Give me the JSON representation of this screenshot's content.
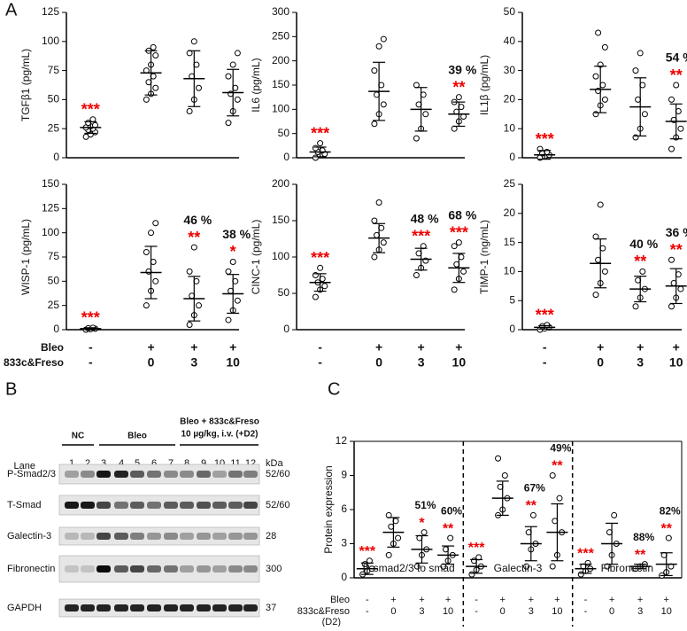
{
  "panel_a": {
    "label": "A",
    "row_labels": [
      "Bleo",
      "833c&Freso"
    ],
    "bleo": [
      "-",
      "+",
      "+",
      "+"
    ],
    "dose": [
      "-",
      "0",
      "3",
      "10"
    ]
  },
  "panel_b": {
    "label": "B",
    "groups": [
      "NC",
      "Bleo",
      "Bleo + 833c&Freso",
      "10 µg/kg, i.v. (+D2)"
    ],
    "lane_label": "Lane",
    "lanes": [
      "1",
      "2",
      "3",
      "4",
      "5",
      "6",
      "7",
      "8",
      "9",
      "10",
      "11",
      "12"
    ],
    "kda_label": "kDa",
    "rows": [
      {
        "name": "P-Smad2/3",
        "kda": "52/60"
      },
      {
        "name": "T-Smad",
        "kda": "52/60"
      },
      {
        "name": "Galectin-3",
        "kda": "28"
      },
      {
        "name": "Fibronectin",
        "kda": "300"
      },
      {
        "name": "GAPDH",
        "kda": "37"
      }
    ]
  },
  "panel_c": {
    "label": "C",
    "row_labels": [
      "Bleo",
      "833c&Freso",
      "(D2)"
    ],
    "bleo": [
      "-",
      "+",
      "+",
      "+"
    ],
    "dose": [
      "-",
      "0",
      "3",
      "10"
    ]
  },
  "chart_data": [
    {
      "type": "dot_plot",
      "ylabel": "TGFβ1  (pg/mL)",
      "ylim": [
        0,
        125
      ],
      "yticks": [
        0,
        25,
        50,
        75,
        100,
        125
      ],
      "groups": [
        {
          "mean": 26,
          "sd": 5,
          "stars": "***",
          "points": [
            18,
            20,
            22,
            24,
            25,
            26,
            27,
            28,
            30,
            33
          ]
        },
        {
          "mean": 73,
          "sd": 19,
          "points": [
            50,
            55,
            60,
            65,
            70,
            75,
            80,
            88,
            92,
            95
          ]
        },
        {
          "mean": 68,
          "sd": 24,
          "points": [
            40,
            50,
            60,
            70,
            80,
            90,
            100
          ]
        },
        {
          "mean": 56,
          "sd": 20,
          "points": [
            30,
            40,
            50,
            55,
            60,
            70,
            80,
            90
          ]
        }
      ]
    },
    {
      "type": "dot_plot",
      "ylabel": "IL6  (pg/mL)",
      "ylim": [
        0,
        300
      ],
      "yticks": [
        0,
        50,
        100,
        150,
        200,
        250,
        300
      ],
      "groups": [
        {
          "mean": 12,
          "sd": 10,
          "stars": "***",
          "points": [
            0,
            5,
            8,
            12,
            15,
            20,
            30
          ]
        },
        {
          "mean": 137,
          "sd": 60,
          "points": [
            70,
            90,
            110,
            130,
            150,
            180,
            230,
            245
          ]
        },
        {
          "mean": 100,
          "sd": 45,
          "points": [
            40,
            60,
            90,
            110,
            130,
            150
          ]
        },
        {
          "mean": 90,
          "sd": 25,
          "stars": "**",
          "pct": "39 %",
          "points": [
            60,
            75,
            85,
            95,
            105,
            115,
            125
          ]
        }
      ]
    },
    {
      "type": "dot_plot",
      "ylabel": "IL1β  (pg/mL)",
      "ylim": [
        0,
        50
      ],
      "yticks": [
        0,
        10,
        20,
        30,
        40,
        50
      ],
      "groups": [
        {
          "mean": 1,
          "sd": 1.5,
          "stars": "***",
          "points": [
            0,
            0.5,
            1,
            1.5,
            2,
            3
          ]
        },
        {
          "mean": 23.5,
          "sd": 8,
          "points": [
            15,
            18,
            20,
            23,
            25,
            28,
            32,
            38,
            43
          ]
        },
        {
          "mean": 17.5,
          "sd": 10,
          "points": [
            7,
            10,
            15,
            20,
            25,
            30,
            36
          ]
        },
        {
          "mean": 12.5,
          "sd": 6,
          "stars": "**",
          "pct": "54 %",
          "points": [
            3,
            7,
            10,
            13,
            16,
            20,
            25
          ]
        }
      ]
    },
    {
      "type": "dot_plot",
      "ylabel": "WISP-1 (pg/mL)",
      "ylim": [
        0,
        150
      ],
      "yticks": [
        0,
        25,
        50,
        75,
        100,
        125,
        150
      ],
      "groups": [
        {
          "mean": 1,
          "sd": 1,
          "stars": "***",
          "points": [
            0,
            0.5,
            1,
            1.5,
            2
          ]
        },
        {
          "mean": 59,
          "sd": 27,
          "points": [
            25,
            40,
            50,
            60,
            70,
            80,
            100,
            110
          ]
        },
        {
          "mean": 32,
          "sd": 23,
          "stars": "**",
          "pct": "46 %",
          "points": [
            5,
            15,
            25,
            35,
            50,
            60,
            85
          ]
        },
        {
          "mean": 37,
          "sd": 20,
          "stars": "*",
          "pct": "38 %",
          "points": [
            10,
            20,
            30,
            40,
            50,
            60,
            70
          ]
        }
      ]
    },
    {
      "type": "dot_plot",
      "ylabel": "CINC-1 (pg/mL)",
      "ylim": [
        0,
        200
      ],
      "yticks": [
        0,
        50,
        100,
        150,
        200
      ],
      "groups": [
        {
          "mean": 65,
          "sd": 12,
          "stars": "***",
          "points": [
            45,
            55,
            60,
            65,
            70,
            75,
            85
          ]
        },
        {
          "mean": 126,
          "sd": 20,
          "points": [
            100,
            110,
            120,
            130,
            140,
            150,
            175
          ]
        },
        {
          "mean": 97,
          "sd": 15,
          "stars": "***",
          "pct": "48 %",
          "points": [
            75,
            85,
            95,
            105,
            115
          ]
        },
        {
          "mean": 85,
          "sd": 20,
          "stars": "***",
          "pct": "68 %",
          "points": [
            55,
            70,
            80,
            90,
            100,
            115,
            120
          ]
        }
      ]
    },
    {
      "type": "dot_plot",
      "ylabel": "TIMP-1 (ng/mL)",
      "ylim": [
        0,
        25
      ],
      "yticks": [
        0,
        5,
        10,
        15,
        20,
        25
      ],
      "groups": [
        {
          "mean": 0.4,
          "sd": 0.3,
          "stars": "***",
          "points": [
            0,
            0.2,
            0.4,
            0.6,
            0.8
          ]
        },
        {
          "mean": 11.4,
          "sd": 4.2,
          "points": [
            6,
            8,
            10,
            12,
            14,
            16,
            21.5
          ]
        },
        {
          "mean": 7,
          "sd": 2.2,
          "stars": "**",
          "pct": "40 %",
          "points": [
            4,
            5.5,
            7,
            8.5,
            10
          ]
        },
        {
          "mean": 7.5,
          "sd": 3,
          "stars": "**",
          "pct": "36 %",
          "points": [
            4,
            5.5,
            7,
            8,
            9.5,
            12
          ]
        }
      ]
    },
    {
      "type": "sectioned_dot_plot",
      "ylabel": "Protein expression",
      "ylim": [
        0,
        12
      ],
      "yticks": [
        0,
        3,
        6,
        9,
        12
      ],
      "sections": [
        {
          "name": "P-smad2/3 to smad",
          "groups": [
            {
              "mean": 0.8,
              "sd": 0.5,
              "stars": "***",
              "points": [
                0.3,
                0.6,
                0.8,
                1.2,
                1.5
              ]
            },
            {
              "mean": 4,
              "sd": 1.3,
              "points": [
                2,
                3,
                3.5,
                4.5,
                5,
                5.5
              ]
            },
            {
              "mean": 2.5,
              "sd": 1.2,
              "stars": "*",
              "pct": "51%",
              "points": [
                1,
                2,
                2.5,
                3.5,
                4
              ]
            },
            {
              "mean": 2,
              "sd": 0.8,
              "stars": "**",
              "pct": "60%",
              "points": [
                1,
                1.5,
                2,
                2.5,
                3.5
              ]
            }
          ]
        },
        {
          "name": "Galectin-3",
          "groups": [
            {
              "mean": 1,
              "sd": 0.6,
              "stars": "***",
              "points": [
                0.3,
                0.7,
                1,
                1.5,
                1.8
              ]
            },
            {
              "mean": 7,
              "sd": 1.5,
              "points": [
                5.5,
                6,
                7,
                8,
                9,
                10.5
              ]
            },
            {
              "mean": 3,
              "sd": 1.5,
              "stars": "**",
              "pct": "67%",
              "points": [
                1,
                2.5,
                3,
                4,
                5.5
              ]
            },
            {
              "mean": 4,
              "sd": 2.5,
              "stars": "**",
              "pct": "49%",
              "points": [
                1,
                2,
                4,
                5,
                7,
                9
              ]
            }
          ]
        },
        {
          "name": "Fibronectin",
          "groups": [
            {
              "mean": 0.8,
              "sd": 0.4,
              "stars": "***",
              "points": [
                0.3,
                0.6,
                0.8,
                1,
                1.3
              ]
            },
            {
              "mean": 3,
              "sd": 1.8,
              "points": [
                1,
                2,
                3,
                4,
                5.5
              ]
            },
            {
              "mean": 1,
              "sd": 0.2,
              "stars": "**",
              "pct": "88%",
              "points": [
                0.8,
                1,
                1.2
              ]
            },
            {
              "mean": 1.2,
              "sd": 1,
              "stars": "**",
              "pct": "82%",
              "points": [
                0.2,
                0.5,
                1,
                2,
                3.5
              ]
            }
          ]
        }
      ]
    }
  ]
}
